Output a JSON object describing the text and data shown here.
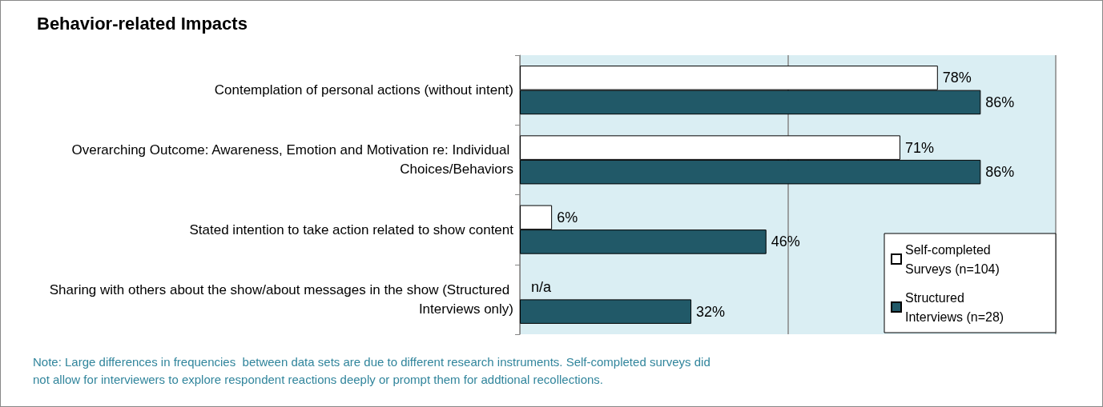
{
  "chart_data": {
    "type": "bar",
    "orientation": "horizontal",
    "title": "Behavior-related Impacts",
    "categories": [
      "Contemplation of personal actions (without intent)",
      "Overarching Outcome: Awareness, Emotion and Motivation re: Individual Choices/Behaviors",
      "Stated intention to take action related to show content",
      "Sharing with others about the show/about messages in the show (Structured Interviews only)"
    ],
    "series": [
      {
        "name": "Self-completed Surveys (n=104)",
        "color": "#ffffff",
        "values": [
          78,
          71,
          6,
          null
        ],
        "value_labels": [
          "78%",
          "71%",
          "6%",
          "n/a"
        ]
      },
      {
        "name": "Structured Interviews (n=28)",
        "color": "#215968",
        "values": [
          86,
          86,
          46,
          32
        ],
        "value_labels": [
          "86%",
          "86%",
          "46%",
          "32%"
        ]
      }
    ],
    "xlim": [
      0,
      100
    ],
    "xticks": [
      {
        "value": 0,
        "label": null
      },
      {
        "value": 50,
        "label": null
      },
      {
        "value": 100,
        "label": null
      }
    ],
    "tick_labels": "y",
    "grid": "x",
    "legend": "bottom right",
    "annotations": [
      "Note: Large differences in frequencies  between data sets are due to different research instruments. Self-completed surveys did not allow for interviewers to explore respondent reactions deeply or prompt them for addtional recollections."
    ]
  }
}
